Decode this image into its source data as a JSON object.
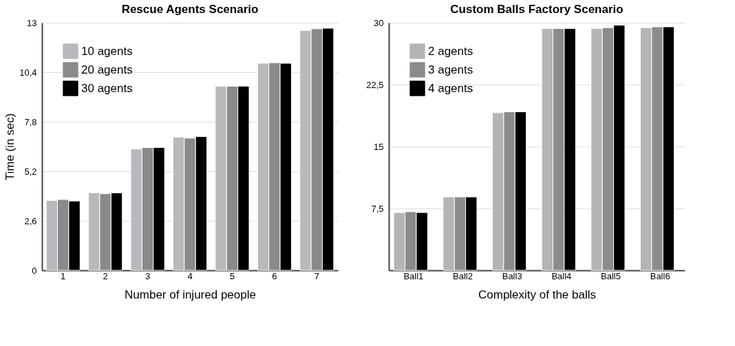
{
  "chart_data": [
    {
      "type": "bar",
      "title": "Rescue Agents Scenario",
      "xlabel": "Number of injured people",
      "ylabel": "Time (in sec)",
      "categories": [
        "1",
        "2",
        "3",
        "4",
        "5",
        "6",
        "7"
      ],
      "series": [
        {
          "name": "10 agents",
          "color": "#b9b8bd",
          "values": [
            3.67,
            4.07,
            6.37,
            6.99,
            9.67,
            10.87,
            12.59
          ]
        },
        {
          "name": "20 agents",
          "color": "#8a898b",
          "values": [
            3.72,
            4.03,
            6.45,
            6.94,
            9.67,
            10.9,
            12.68
          ]
        },
        {
          "name": "30 agents",
          "color": "#000000",
          "values": [
            3.64,
            4.07,
            6.45,
            7.02,
            9.67,
            10.87,
            12.71
          ]
        }
      ],
      "ylim": [
        0,
        13
      ],
      "yticks": [
        0,
        {
          "value": 2.6,
          "label": "2,6"
        },
        {
          "value": 5.2,
          "label": "5,2"
        },
        {
          "value": 7.8,
          "label": "7,8"
        },
        {
          "value": 10.4,
          "label": "10,4"
        },
        13
      ],
      "grid": "y",
      "legend": "top left"
    },
    {
      "type": "bar",
      "title": "Custom Balls Factory Scenario",
      "xlabel": "Complexity of the balls",
      "categories": [
        "Ball1",
        "Ball2",
        "Ball3",
        "Ball4",
        "Ball5",
        "Ball6"
      ],
      "series": [
        {
          "name": "2 agents",
          "color": "#b2b4b5",
          "values": [
            7.0,
            8.9,
            19.1,
            29.3,
            29.3,
            29.4
          ]
        },
        {
          "name": "3 agents",
          "color": "#8b8a8c",
          "values": [
            7.1,
            8.9,
            19.2,
            29.3,
            29.4,
            29.5
          ]
        },
        {
          "name": "4 agents",
          "color": "#000000",
          "values": [
            7.0,
            8.9,
            19.2,
            29.3,
            29.7,
            29.5
          ]
        }
      ],
      "ylim": [
        0,
        30
      ],
      "yticks": [
        {
          "value": 7.5,
          "label": "7,5"
        },
        15,
        {
          "value": 22.5,
          "label": "22,5"
        },
        30
      ],
      "grid": "y",
      "legend": "top left"
    }
  ]
}
